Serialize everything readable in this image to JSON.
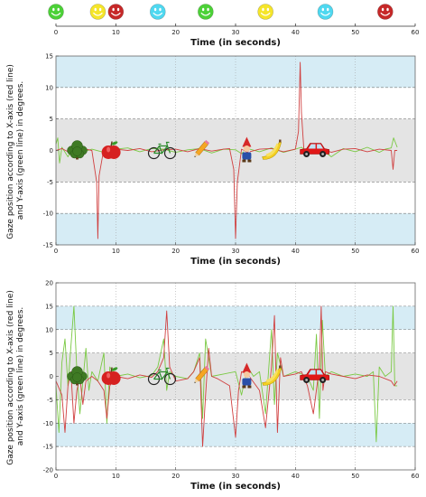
{
  "chart_data": [
    {
      "type": "timeline",
      "xlabel": "Time (in seconds)",
      "xlim": [
        0,
        60
      ],
      "xticks": [
        0,
        10,
        20,
        30,
        40,
        50,
        60
      ],
      "smileys": [
        {
          "x": 0,
          "color": "#4cd137"
        },
        {
          "x": 7,
          "color": "#f5e52a"
        },
        {
          "x": 10,
          "color": "#c62828"
        },
        {
          "x": 17,
          "color": "#4fd8f0"
        },
        {
          "x": 25,
          "color": "#4cd137"
        },
        {
          "x": 35,
          "color": "#f5e52a"
        },
        {
          "x": 45,
          "color": "#4fd8f0"
        },
        {
          "x": 55,
          "color": "#c62828"
        }
      ]
    },
    {
      "type": "line",
      "xlabel": "Time (in seconds)",
      "ylabel": "Gaze position according to X-axis (red line) and Y-axis (green line) in degrees.",
      "ylabel_lines": [
        "Gaze position according to X-axis (red line)",
        "and Y-axis (green line) in degrees."
      ],
      "xlim": [
        0,
        60
      ],
      "ylim": [
        -15,
        15
      ],
      "xticks": [
        0,
        10,
        20,
        30,
        40,
        50,
        60
      ],
      "yticks": [
        -15,
        -10,
        -5,
        0,
        5,
        10,
        15
      ],
      "bands": [
        {
          "y0": 10,
          "y1": 15,
          "color": "#d6ecf5"
        },
        {
          "y0": -5,
          "y1": 5,
          "color": "#e4e4e4"
        },
        {
          "y0": -15,
          "y1": -10,
          "color": "#d6ecf5"
        }
      ],
      "icons": [
        {
          "x": 5,
          "name": "tree-icon"
        },
        {
          "x": 13,
          "name": "apple-icon"
        },
        {
          "x": 25,
          "name": "bicycle-icon"
        },
        {
          "x": 34,
          "name": "pencil-icon"
        },
        {
          "x": 45,
          "name": "gnome-icon"
        },
        {
          "x": 51,
          "name": "banana-icon"
        },
        {
          "x": 61,
          "name": "car-icon"
        }
      ],
      "series": [
        {
          "name": "X-axis",
          "color": "#d04040",
          "x": [
            0,
            1,
            2,
            3,
            4,
            5,
            6,
            6.8,
            7,
            7.2,
            8,
            9,
            10,
            12,
            14,
            16,
            18,
            20,
            22,
            24,
            26,
            28,
            29,
            29.7,
            30,
            30.3,
            31,
            32,
            34,
            36,
            38,
            40,
            40.5,
            40.8,
            41,
            41.4,
            42,
            44,
            46,
            48,
            50,
            52,
            54,
            56,
            56.3,
            56.6,
            57
          ],
          "y": [
            0,
            0.3,
            -0.2,
            0.4,
            -0.3,
            0.2,
            0,
            -5,
            -14,
            -4,
            0.3,
            -0.2,
            0.2,
            0,
            0.3,
            -0.2,
            0.1,
            0.2,
            -0.2,
            0.3,
            -0.1,
            0.2,
            0.3,
            -3,
            -14,
            -5,
            0.2,
            -0.3,
            0.2,
            0.3,
            -0.2,
            0.2,
            3,
            14,
            6,
            0.3,
            -0.2,
            0.4,
            -0.3,
            0.2,
            0.3,
            -0.2,
            0.2,
            0,
            -3,
            0,
            0
          ]
        },
        {
          "name": "Y-axis",
          "color": "#7ac943",
          "x": [
            0,
            0.3,
            0.6,
            1,
            2,
            3,
            4,
            6,
            8,
            10,
            12,
            14,
            16,
            18,
            20,
            22,
            24,
            26,
            28,
            30,
            31,
            32,
            34,
            36,
            38,
            40,
            41,
            42,
            44,
            46,
            48,
            50,
            52,
            54,
            55,
            56,
            56.4,
            57
          ],
          "y": [
            1,
            2,
            -2,
            0.5,
            -1,
            0.5,
            -0.4,
            0.2,
            -0.3,
            0.2,
            0.4,
            -0.2,
            0.3,
            0.2,
            -0.3,
            0.1,
            0.3,
            -0.4,
            0.2,
            0.1,
            -0.5,
            0.3,
            -0.2,
            0.4,
            -0.3,
            0.2,
            0.5,
            -0.3,
            0.4,
            -1,
            0.3,
            -0.2,
            0.5,
            -0.3,
            0.2,
            0.4,
            2,
            0.5
          ]
        }
      ]
    },
    {
      "type": "line",
      "xlabel": "Time (in seconds)",
      "ylabel": "Gaze position according to X-axis (red line) and Y-axis (green line) in degrees.",
      "ylabel_lines": [
        "Gaze position according to X-axis (red line)",
        "and Y-axis (green line) in degrees."
      ],
      "xlim": [
        0,
        60
      ],
      "ylim": [
        -20,
        20
      ],
      "xticks": [
        0,
        10,
        20,
        30,
        40,
        50,
        60
      ],
      "yticks": [
        -20,
        -15,
        -10,
        -5,
        0,
        5,
        10,
        15,
        20
      ],
      "bands": [
        {
          "y0": 10,
          "y1": 15,
          "color": "#d6ecf5"
        },
        {
          "y0": -5,
          "y1": 5,
          "color": "#e4e4e4"
        },
        {
          "y0": -15,
          "y1": -10,
          "color": "#d6ecf5"
        }
      ],
      "icons": [
        {
          "x": 5,
          "name": "tree-icon"
        },
        {
          "x": 13,
          "name": "apple-icon"
        },
        {
          "x": 25,
          "name": "bicycle-icon"
        },
        {
          "x": 34,
          "name": "pencil-icon"
        },
        {
          "x": 45,
          "name": "gnome-icon"
        },
        {
          "x": 51,
          "name": "banana-icon"
        },
        {
          "x": 61,
          "name": "car-icon"
        }
      ],
      "series": [
        {
          "name": "X-axis",
          "color": "#d04040",
          "x": [
            0,
            1,
            1.5,
            2,
            2.5,
            3,
            3.5,
            4,
            4.5,
            5,
            6,
            7,
            8,
            8.5,
            9,
            10,
            12,
            14,
            16,
            17,
            18,
            18.5,
            19,
            20,
            22,
            23,
            24,
            24.5,
            25,
            25.5,
            26,
            27,
            29,
            30,
            30.5,
            31,
            32,
            34,
            35,
            36,
            36.5,
            37,
            37.5,
            38,
            40,
            41,
            42,
            43,
            44,
            44.3,
            44.6,
            45,
            46,
            48,
            50,
            52,
            54,
            56,
            56.5,
            57
          ],
          "y": [
            -1,
            -4,
            -12,
            -2,
            1,
            -10,
            -3,
            0,
            -6,
            -1,
            0,
            -1,
            -3,
            -9,
            -2,
            0,
            -0.5,
            0.3,
            -0.2,
            1,
            4,
            14,
            2,
            -1,
            -0.5,
            1,
            4,
            -15,
            -4,
            6,
            0,
            -0.5,
            -2,
            -13,
            -3,
            1,
            0.5,
            -3,
            -11,
            2,
            13,
            -12,
            4,
            0,
            0.5,
            1,
            -2,
            -8,
            2,
            15,
            -3,
            1,
            0.5,
            0,
            -0.5,
            0.3,
            0,
            -1,
            -2,
            -1
          ]
        },
        {
          "name": "Y-axis",
          "color": "#7ac943",
          "x": [
            0,
            0.5,
            1,
            1.5,
            2,
            3,
            3.5,
            4,
            5,
            5.5,
            6,
            7,
            8,
            8.5,
            9,
            10,
            12,
            14,
            16,
            17,
            18,
            18.5,
            19,
            20,
            22,
            23,
            24,
            24.5,
            25,
            26,
            28,
            30,
            31,
            32,
            33,
            34,
            35,
            36,
            36.5,
            37,
            38,
            40,
            42,
            43,
            43.5,
            44,
            44.5,
            45,
            46,
            48,
            50,
            52,
            53,
            53.5,
            54,
            55,
            56,
            56.3,
            56.6,
            57
          ],
          "y": [
            -2,
            -12,
            3,
            8,
            -2,
            15,
            1,
            -8,
            6,
            -3,
            1,
            -1,
            5,
            -10,
            2,
            0,
            0.5,
            -0.3,
            0.2,
            2,
            8,
            -3,
            1,
            0,
            -0.5,
            1,
            5,
            -9,
            8,
            0,
            0.5,
            1,
            -4,
            2,
            0,
            1,
            -8,
            10,
            -6,
            5,
            0,
            1,
            0,
            -3,
            9,
            -9,
            12,
            0,
            1,
            0,
            0.5,
            0,
            1,
            -14,
            2,
            0,
            1,
            15,
            -2,
            -2
          ]
        }
      ]
    }
  ]
}
